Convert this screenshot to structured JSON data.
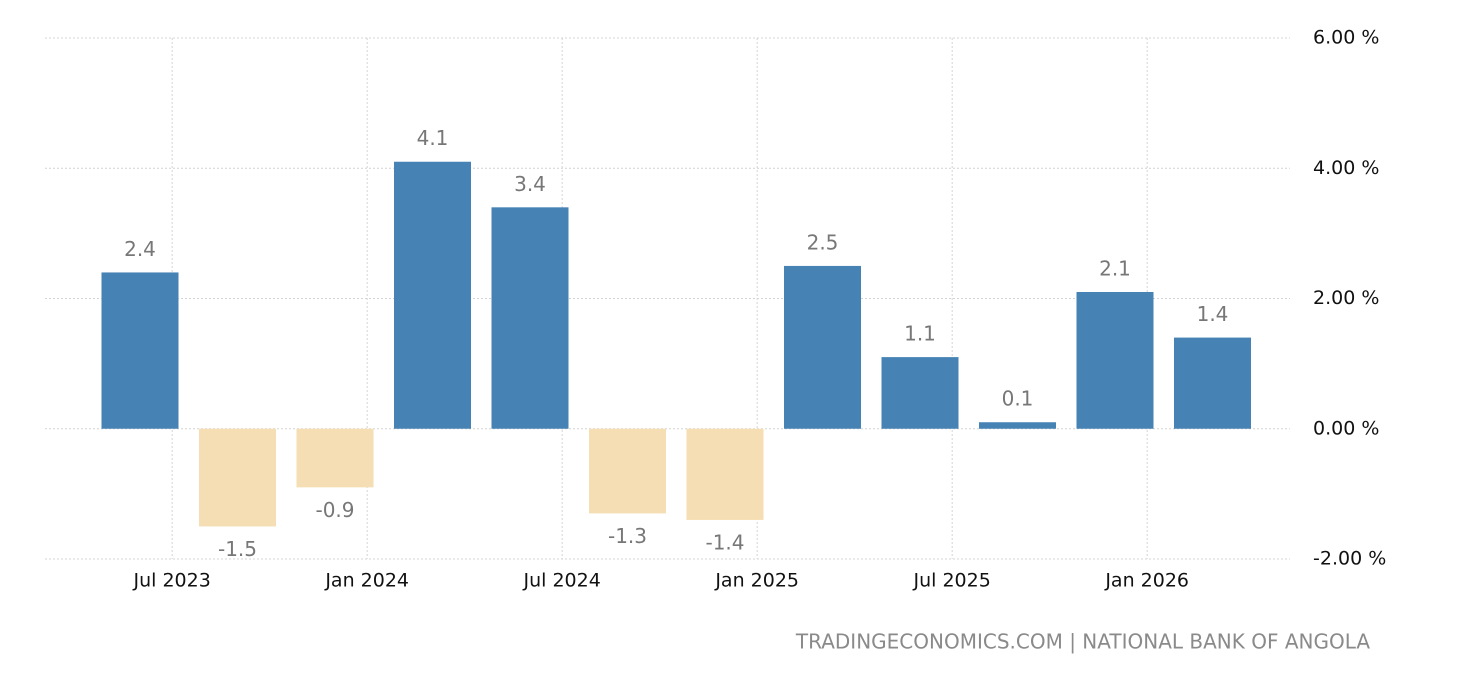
{
  "chart_data": {
    "type": "bar",
    "categories": [
      null,
      null,
      null,
      null,
      null,
      null,
      null,
      null,
      null,
      null,
      null,
      null
    ],
    "values": [
      2.4,
      -1.5,
      -0.9,
      4.1,
      3.4,
      -1.3,
      -1.4,
      2.5,
      1.1,
      0.1,
      2.1,
      1.4
    ],
    "color": "#4682b4",
    "negative_color": "#f5deb3",
    "x_tick_labels": [
      "Jul 2023",
      "Jan 2024",
      "Jul 2024",
      "Jan 2025",
      "Jul 2025",
      "Jan 2026"
    ],
    "ylim": [
      -2,
      6
    ],
    "yticks": [
      {
        "value": 6,
        "label": "6.00 %"
      },
      {
        "value": 4,
        "label": "4.00 %"
      },
      {
        "value": 2,
        "label": "2.00 %"
      },
      {
        "value": 0,
        "label": "0.00 %"
      },
      {
        "value": -2,
        "label": "-2.00 %"
      }
    ],
    "grid": true,
    "source": "TRADINGECONOMICS.COM | NATIONAL BANK OF ANGOLA"
  }
}
